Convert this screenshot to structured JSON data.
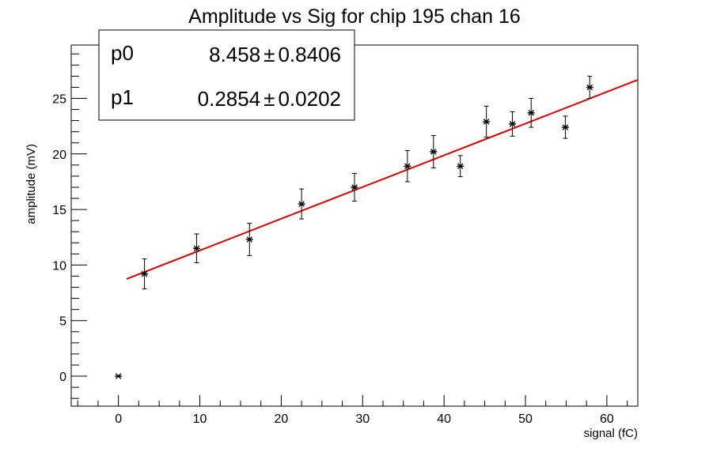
{
  "chart_data": {
    "type": "scatter",
    "title": "Amplitude vs Sig for chip 195 chan 16",
    "xlabel": "signal (fC)",
    "ylabel": "amplitude (mV)",
    "xlim": [
      -5.8,
      63.8
    ],
    "ylim": [
      -2.7,
      29.8
    ],
    "x_ticks": [
      0,
      10,
      20,
      30,
      40,
      50,
      60
    ],
    "x_tick_labels": [
      "0",
      "10",
      "20",
      "30",
      "40",
      "50",
      "60"
    ],
    "y_ticks": [
      0,
      5,
      10,
      15,
      20,
      25
    ],
    "y_tick_labels": [
      "0",
      "5",
      "10",
      "15",
      "20",
      "25"
    ],
    "grid": false,
    "series": [
      {
        "marker": "asterisk",
        "color": "#000000",
        "points": [
          {
            "x": 0.0,
            "y": 0.0,
            "err": 0.0
          },
          {
            "x": 3.2,
            "y": 9.2,
            "err": 1.35
          },
          {
            "x": 9.6,
            "y": 11.5,
            "err": 1.3
          },
          {
            "x": 16.1,
            "y": 12.3,
            "err": 1.45
          },
          {
            "x": 22.5,
            "y": 15.5,
            "err": 1.35
          },
          {
            "x": 29.0,
            "y": 17.0,
            "err": 1.25
          },
          {
            "x": 35.5,
            "y": 18.9,
            "err": 1.4
          },
          {
            "x": 38.7,
            "y": 20.2,
            "err": 1.45
          },
          {
            "x": 42.0,
            "y": 18.9,
            "err": 0.95
          },
          {
            "x": 45.2,
            "y": 22.9,
            "err": 1.4
          },
          {
            "x": 48.4,
            "y": 22.7,
            "err": 1.1
          },
          {
            "x": 50.7,
            "y": 23.7,
            "err": 1.3
          },
          {
            "x": 54.9,
            "y": 22.4,
            "err": 1.0
          },
          {
            "x": 57.9,
            "y": 26.0,
            "err": 1.0
          }
        ]
      }
    ],
    "fit": {
      "color": "#dd0000",
      "x_range": [
        1.0,
        63.8
      ],
      "p0": 8.458,
      "p1": 0.2854
    },
    "stats_box": {
      "rows": [
        {
          "name": "p0",
          "value": "8.458",
          "pm": "±",
          "error": "0.8406"
        },
        {
          "name": "p1",
          "value": "0.2854",
          "pm": "±",
          "error": "0.0202"
        }
      ],
      "position": "top-left"
    }
  }
}
